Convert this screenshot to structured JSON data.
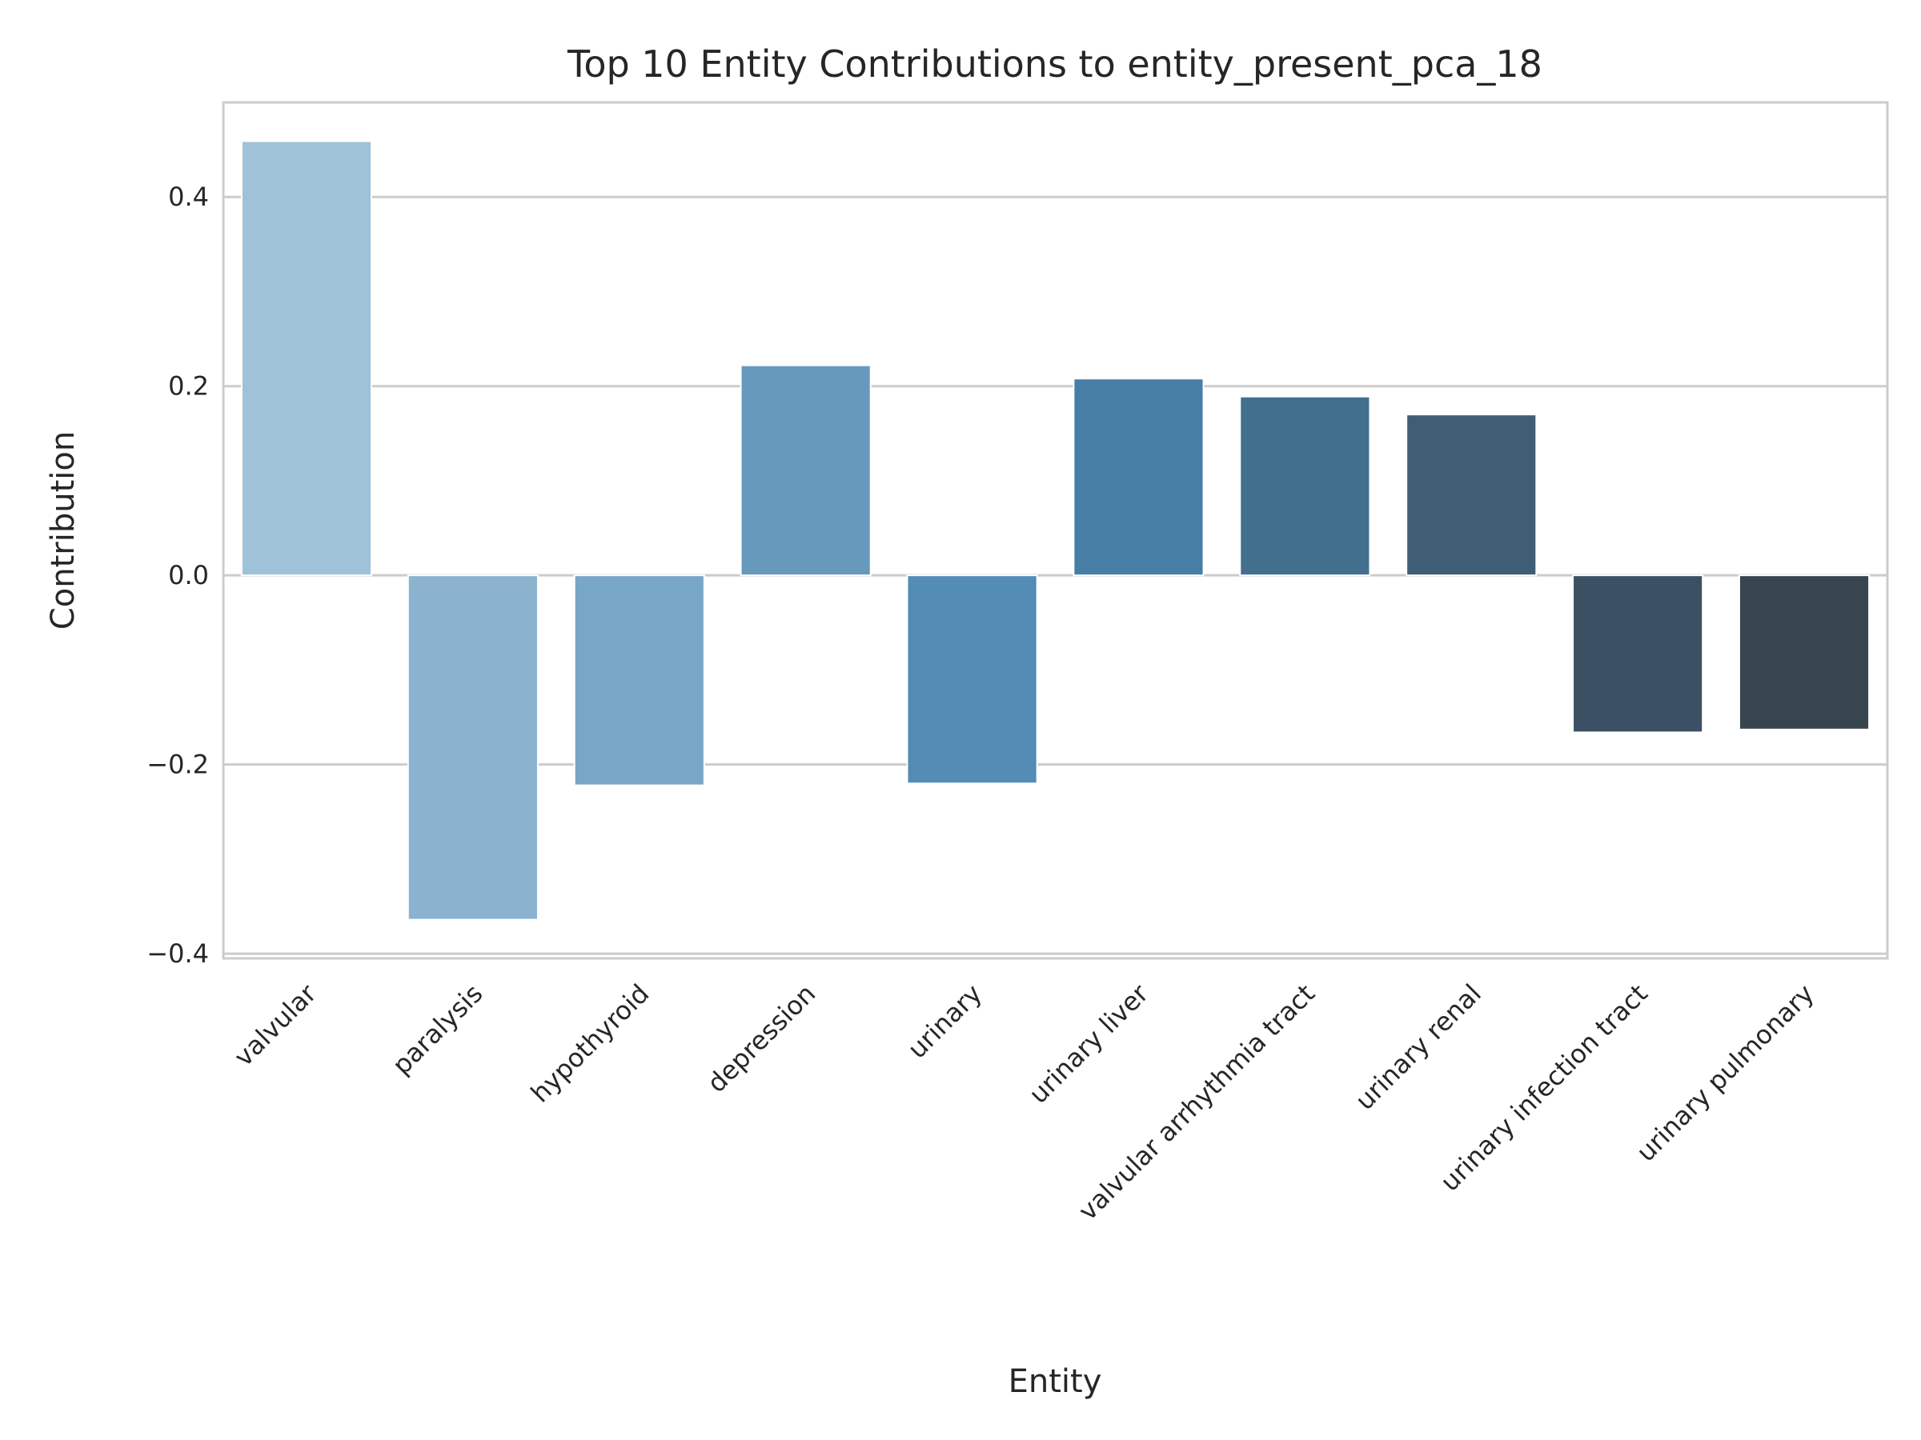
{
  "chart_data": {
    "type": "bar",
    "title": "Top 10 Entity Contributions to entity_present_pca_18",
    "xlabel": "Entity",
    "ylabel": "Contribution",
    "categories": [
      "valvular",
      "paralysis",
      "hypothyroid",
      "depression",
      "urinary",
      "urinary liver",
      "valvular arrhythmia tract",
      "urinary renal",
      "urinary infection tract",
      "urinary pulmonary"
    ],
    "values": [
      0.459,
      -0.364,
      -0.222,
      0.222,
      -0.22,
      0.208,
      0.189,
      0.17,
      -0.166,
      -0.163
    ],
    "colors": [
      "#a0c2d8",
      "#8bb2cf",
      "#78a6c7",
      "#6799bd",
      "#538cb5",
      "#477ea6",
      "#436f8f",
      "#3f5e76",
      "#3c5063",
      "#37454e"
    ],
    "ylim": [
      -0.405,
      0.5
    ],
    "yticks": [
      -0.4,
      -0.2,
      0.0,
      0.2,
      0.4
    ],
    "ytick_labels": [
      "−0.4",
      "−0.2",
      "0.0",
      "0.2",
      "0.4"
    ],
    "grid": true,
    "legend": "none"
  }
}
